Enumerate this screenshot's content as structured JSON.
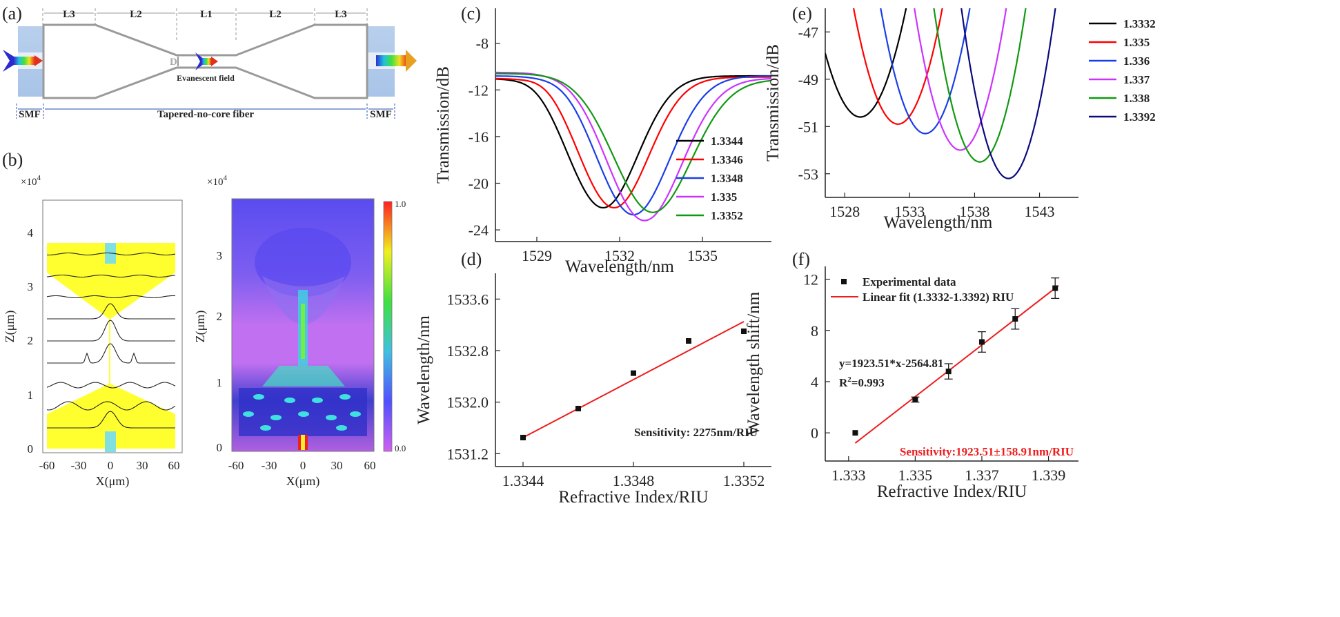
{
  "panels": {
    "a": {
      "label": "(a)",
      "segments": [
        "L3",
        "L2",
        "L1",
        "L2",
        "L3"
      ],
      "d_label": "D",
      "evanescent_label": "Evanescent field",
      "smf_left": "SMF",
      "smf_right": "SMF",
      "fiber_label": "Tapered-no-core fiber"
    },
    "b": {
      "label": "(b)",
      "left_multiplier": "×10^4",
      "right_multiplier": "×10^4",
      "left_yticks": [
        "0",
        "1",
        "2",
        "3",
        "4"
      ],
      "right_yticks": [
        "0",
        "1",
        "2",
        "3"
      ],
      "xticks": [
        "-60",
        "-30",
        "0",
        "30",
        "60"
      ],
      "ylabel": "Z(μm)",
      "xlabel": "X(μm)",
      "colorbar_max": "1.0",
      "colorbar_min": "0.0"
    }
  },
  "chart_data": [
    {
      "id": "c",
      "label": "(c)",
      "type": "line",
      "xlabel": "Wavelength/nm",
      "ylabel": "Transmission/dB",
      "xlim": [
        1527.5,
        1537.5
      ],
      "ylim": [
        -25,
        -5
      ],
      "xticks": [
        1529,
        1532,
        1535
      ],
      "yticks": [
        -8,
        -12,
        -16,
        -20,
        -24
      ],
      "series": [
        {
          "name": "1.3344",
          "color": "#000000",
          "center": 1531.4,
          "min": -22.1,
          "left_base": -11.0,
          "right_base": -10.8,
          "width": 1.25,
          "peak": -10.6
        },
        {
          "name": "1.3346",
          "color": "#ff0000",
          "center": 1531.8,
          "min": -22.1,
          "left_base": -11.0,
          "right_base": -10.9,
          "width": 1.25,
          "peak": -10.5
        },
        {
          "name": "1.3348",
          "color": "#1a3ee6",
          "center": 1532.5,
          "min": -22.7,
          "left_base": -10.8,
          "right_base": -10.8,
          "width": 1.3,
          "peak": -10.5
        },
        {
          "name": "1.335",
          "color": "#cc33ff",
          "center": 1532.9,
          "min": -23.2,
          "left_base": -10.5,
          "right_base": -11.0,
          "width": 1.35,
          "peak": -10.4
        },
        {
          "name": "1.3352",
          "color": "#109910",
          "center": 1533.2,
          "min": -22.5,
          "left_base": -10.6,
          "right_base": -11.1,
          "width": 1.4,
          "peak": -10.6
        }
      ]
    },
    {
      "id": "d",
      "label": "(d)",
      "type": "scatter",
      "xlabel": "Refractive Index/RIU",
      "ylabel": "Wavelength/nm",
      "xlim": [
        1.3343,
        1.3353
      ],
      "ylim": [
        1531.0,
        1534.0
      ],
      "xticks": [
        "1.3344",
        "1.3348",
        "1.3352"
      ],
      "yticks": [
        "1531.2",
        "1532.0",
        "1532.8",
        "1533.6"
      ],
      "x": [
        1.3344,
        1.3346,
        1.3348,
        1.335,
        1.3352
      ],
      "y": [
        1531.45,
        1531.9,
        1532.45,
        1532.95,
        1533.1
      ],
      "fit": {
        "x0": 1.3344,
        "y0": 1531.45,
        "x1": 1.3352,
        "y1": 1533.25
      },
      "annotation": "Sensitivity: 2275nm/RIU"
    },
    {
      "id": "e",
      "label": "(e)",
      "type": "line",
      "xlabel": "Wavelength/nm",
      "ylabel": "Transmission/dB",
      "xlim": [
        1526.5,
        1546.0
      ],
      "ylim": [
        -54.0,
        -46.0
      ],
      "xticks": [
        1528,
        1533,
        1538,
        1543
      ],
      "yticks": [
        -47,
        -49,
        -51,
        -53
      ],
      "series": [
        {
          "name": "1.3332",
          "color": "#000000",
          "center": 1529.2,
          "min": -50.6,
          "k": 0.37
        },
        {
          "name": "1.335",
          "color": "#ff0000",
          "center": 1532.1,
          "min": -50.9,
          "k": 0.42
        },
        {
          "name": "1.336",
          "color": "#1a3ee6",
          "center": 1534.2,
          "min": -51.3,
          "k": 0.45
        },
        {
          "name": "1.337",
          "color": "#cc33ff",
          "center": 1536.9,
          "min": -52.0,
          "k": 0.48
        },
        {
          "name": "1.338",
          "color": "#109910",
          "center": 1538.4,
          "min": -52.5,
          "k": 0.52
        },
        {
          "name": "1.3392",
          "color": "#0a0a80",
          "center": 1540.6,
          "min": -53.2,
          "k": 0.55
        }
      ]
    },
    {
      "id": "f",
      "label": "(f)",
      "type": "scatter",
      "xlabel": "Refractive Index/RIU",
      "ylabel": "Wavelength shift/nm",
      "xlim": [
        1.3323,
        1.3399
      ],
      "ylim": [
        -2.2,
        13.0
      ],
      "xticks": [
        "1.333",
        "1.335",
        "1.337",
        "1.339"
      ],
      "yticks": [
        "0",
        "4",
        "8",
        "12"
      ],
      "x": [
        1.3332,
        1.335,
        1.336,
        1.337,
        1.338,
        1.3392
      ],
      "y": [
        0.0,
        2.6,
        4.8,
        7.1,
        8.9,
        11.3
      ],
      "err": [
        0.0,
        0.2,
        0.6,
        0.8,
        0.8,
        0.8
      ],
      "fit": {
        "x0": 1.3332,
        "y0": -0.8,
        "x1": 1.3393,
        "y1": 11.5
      },
      "legend": [
        "Experimental data",
        "Linear fit (1.3332-1.3392) RIU"
      ],
      "equation": "y=1923.51*x-2564.81",
      "r2_prefix": "R",
      "r2_sup": "2",
      "r2_value": "=0.993",
      "annotation": "Sensitivity:1923.51±158.91nm/RIU"
    }
  ]
}
